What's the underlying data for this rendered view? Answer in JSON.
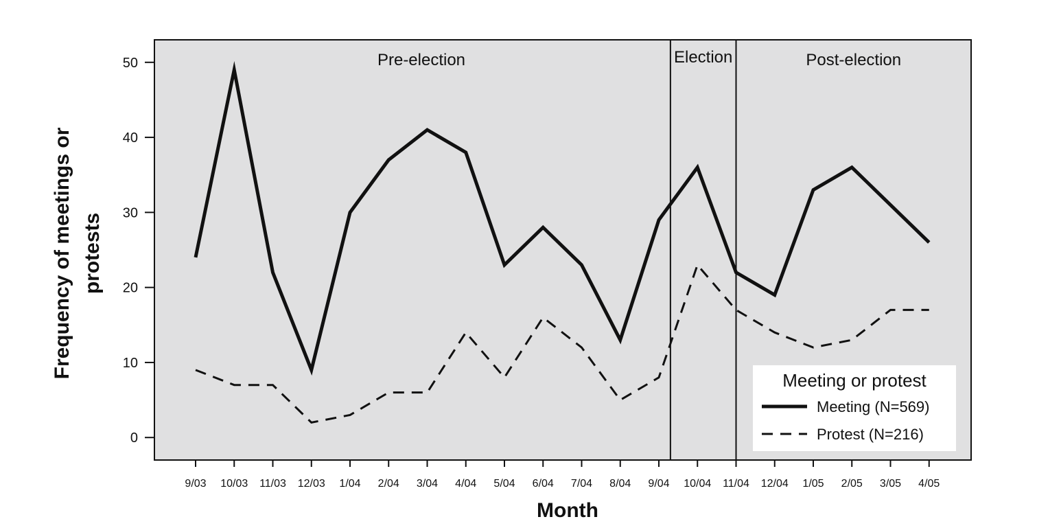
{
  "chart_data": {
    "type": "line",
    "title": "",
    "xlabel": "Month",
    "ylabel_lines": [
      "Frequency of meetings or",
      "protests"
    ],
    "categories": [
      "9/03",
      "10/03",
      "11/03",
      "12/03",
      "1/04",
      "2/04",
      "3/04",
      "4/04",
      "5/04",
      "6/04",
      "7/04",
      "8/04",
      "9/04",
      "10/04",
      "11/04",
      "12/04",
      "1/05",
      "2/05",
      "3/05",
      "4/05"
    ],
    "ylim": [
      -3,
      53
    ],
    "yticks": [
      0,
      10,
      20,
      30,
      40,
      50
    ],
    "grid": false,
    "series": [
      {
        "name": "Meeting (N=569)",
        "style": "solid",
        "values": [
          24,
          49,
          22,
          9,
          30,
          37,
          41,
          38,
          23,
          28,
          23,
          13,
          29,
          36,
          22,
          19,
          33,
          36,
          31,
          26
        ]
      },
      {
        "name": "Protest (N=216)",
        "style": "dashed",
        "values": [
          9,
          7,
          7,
          2,
          3,
          6,
          6,
          14,
          8,
          16,
          12,
          5,
          8,
          23,
          17,
          14,
          12,
          13,
          17,
          17
        ]
      }
    ],
    "regions": [
      {
        "label": "Pre-election",
        "start_index": 0,
        "end_index": 12
      },
      {
        "label": "Election",
        "start_index": 12,
        "end_index": 14
      },
      {
        "label": "Post-election",
        "start_index": 14,
        "end_index": 19
      }
    ],
    "region_dividers": [
      12.3,
      14
    ],
    "legend": {
      "title": "Meeting or protest",
      "placement": "bottom-right"
    }
  },
  "colors": {
    "plot_background": "#e0e0e1",
    "line": "#111111",
    "legend_background": "#ffffff"
  }
}
